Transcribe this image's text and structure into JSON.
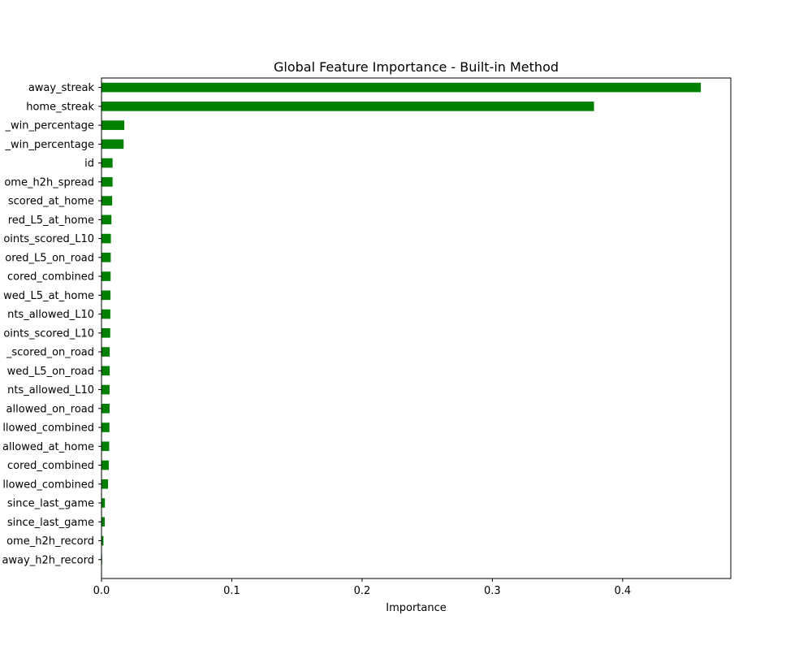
{
  "chart_data": {
    "type": "bar",
    "orientation": "horizontal",
    "title": "Global Feature Importance - Built-in Method",
    "xlabel": "Importance",
    "ylabel": "",
    "xlim": [
      0,
      0.483
    ],
    "xticks": [
      0.0,
      0.1,
      0.2,
      0.3,
      0.4
    ],
    "xtick_labels": [
      "0.0",
      "0.1",
      "0.2",
      "0.3",
      "0.4"
    ],
    "grid": false,
    "bar_color": "#008000",
    "categories": [
      "away_streak",
      "home_streak",
      "_win_percentage",
      "_win_percentage",
      "id",
      "ome_h2h_spread",
      "scored_at_home",
      "red_L5_at_home",
      "oints_scored_L10",
      "ored_L5_on_road",
      "cored_combined",
      "wed_L5_at_home",
      "nts_allowed_L10",
      "oints_scored_L10",
      "_scored_on_road",
      "wed_L5_on_road",
      "nts_allowed_L10",
      "allowed_on_road",
      "llowed_combined",
      "allowed_at_home",
      "cored_combined",
      "llowed_combined",
      "since_last_game",
      "since_last_game",
      "ome_h2h_record",
      "away_h2h_record"
    ],
    "values": [
      0.46,
      0.378,
      0.0175,
      0.017,
      0.0085,
      0.0085,
      0.0082,
      0.0076,
      0.0072,
      0.0071,
      0.007,
      0.0069,
      0.0068,
      0.0067,
      0.0063,
      0.0063,
      0.0062,
      0.0062,
      0.0061,
      0.0059,
      0.0056,
      0.005,
      0.0026,
      0.0025,
      0.0015,
      0.0005
    ]
  }
}
